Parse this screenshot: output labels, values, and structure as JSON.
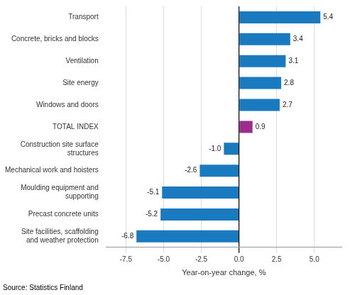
{
  "chart_data": {
    "type": "bar",
    "orientation": "horizontal",
    "categories": [
      "Site facilities, scaffolding and weather protection",
      "Precast concrete units",
      "Moulding equipment and supporting",
      "Mechanical work and hoisters",
      "Construction site surface structures",
      "TOTAL INDEX",
      "Windows and doors",
      "Site energy",
      "Ventilation",
      "Concrete, bricks and blocks",
      "Transport"
    ],
    "values": [
      -6.8,
      -5.2,
      -5.1,
      -2.6,
      -1.0,
      0.9,
      2.7,
      2.8,
      3.1,
      3.4,
      5.4
    ],
    "value_labels": [
      "-6.8",
      "-5.2",
      "-5.1",
      "-2.6",
      "-1.0",
      "0.9",
      "2.7",
      "2.8",
      "3.1",
      "3.4",
      "5.4"
    ],
    "colors": [
      "#1a7abf",
      "#1a7abf",
      "#1a7abf",
      "#1a7abf",
      "#1a7abf",
      "#9b2e8c",
      "#1a7abf",
      "#1a7abf",
      "#1a7abf",
      "#1a7abf",
      "#1a7abf"
    ],
    "xlabel": "Year-on-year change, %",
    "xlim": [
      -8.8,
      6.8
    ],
    "xticks": [
      -7.5,
      {
        "value": -5,
        "label": "-5.0"
      },
      -2.5,
      {
        "value": 0,
        "label": "0.0"
      },
      2.5,
      {
        "value": 5,
        "label": "5.0"
      }
    ],
    "grid": true,
    "data_labels": true,
    "annotations": [
      "Source: Statistics Finland"
    ]
  }
}
